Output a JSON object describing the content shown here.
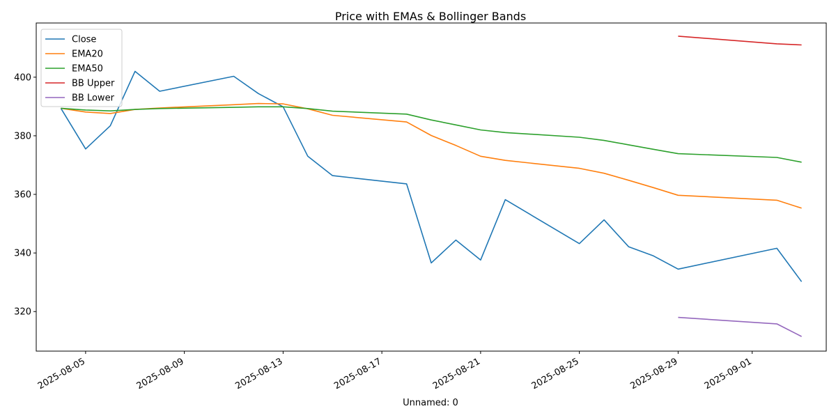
{
  "chart_data": {
    "type": "line",
    "title": "Price with EMAs & Bollinger Bands",
    "xlabel": "Unnamed: 0",
    "ylabel": "",
    "x_type": "date",
    "xlim": [
      "2025-08-03",
      "2025-09-04"
    ],
    "ylim": [
      306.5,
      418.5
    ],
    "x_ticks": [
      "2025-08-05",
      "2025-08-09",
      "2025-08-13",
      "2025-08-17",
      "2025-08-21",
      "2025-08-25",
      "2025-08-29",
      "2025-09-01"
    ],
    "y_ticks": [
      320,
      340,
      360,
      380,
      400
    ],
    "grid": false,
    "legend_position": "upper-left",
    "series": [
      {
        "name": "Close",
        "color": "#1f77b4",
        "points": [
          [
            "2025-08-04",
            389.4
          ],
          [
            "2025-08-05",
            375.5
          ],
          [
            "2025-08-06",
            383.4
          ],
          [
            "2025-08-07",
            402.0
          ],
          [
            "2025-08-08",
            395.2
          ],
          [
            "2025-08-11",
            400.3
          ],
          [
            "2025-08-12",
            394.4
          ],
          [
            "2025-08-13",
            389.9
          ],
          [
            "2025-08-14",
            373.0
          ],
          [
            "2025-08-15",
            366.4
          ],
          [
            "2025-08-18",
            363.6
          ],
          [
            "2025-08-19",
            336.6
          ],
          [
            "2025-08-20",
            344.4
          ],
          [
            "2025-08-21",
            337.6
          ],
          [
            "2025-08-22",
            358.2
          ],
          [
            "2025-08-25",
            343.2
          ],
          [
            "2025-08-26",
            351.3
          ],
          [
            "2025-08-27",
            342.1
          ],
          [
            "2025-08-28",
            339.0
          ],
          [
            "2025-08-29",
            334.5
          ],
          [
            "2025-09-02",
            341.6
          ],
          [
            "2025-09-03",
            330.2
          ]
        ]
      },
      {
        "name": "EMA20",
        "color": "#ff7f0e",
        "points": [
          [
            "2025-08-04",
            389.4
          ],
          [
            "2025-08-05",
            388.1
          ],
          [
            "2025-08-06",
            387.6
          ],
          [
            "2025-08-07",
            389.0
          ],
          [
            "2025-08-08",
            389.5
          ],
          [
            "2025-08-11",
            390.6
          ],
          [
            "2025-08-12",
            391.0
          ],
          [
            "2025-08-13",
            390.9
          ],
          [
            "2025-08-14",
            389.2
          ],
          [
            "2025-08-15",
            387.0
          ],
          [
            "2025-08-18",
            384.7
          ],
          [
            "2025-08-19",
            380.1
          ],
          [
            "2025-08-20",
            376.7
          ],
          [
            "2025-08-21",
            373.0
          ],
          [
            "2025-08-22",
            371.6
          ],
          [
            "2025-08-25",
            368.9
          ],
          [
            "2025-08-26",
            367.2
          ],
          [
            "2025-08-27",
            364.8
          ],
          [
            "2025-08-28",
            362.3
          ],
          [
            "2025-08-29",
            359.7
          ],
          [
            "2025-09-02",
            358.0
          ],
          [
            "2025-09-03",
            355.3
          ]
        ]
      },
      {
        "name": "EMA50",
        "color": "#2ca02c",
        "points": [
          [
            "2025-08-04",
            389.4
          ],
          [
            "2025-08-05",
            388.8
          ],
          [
            "2025-08-06",
            388.5
          ],
          [
            "2025-08-07",
            389.0
          ],
          [
            "2025-08-08",
            389.3
          ],
          [
            "2025-08-11",
            389.7
          ],
          [
            "2025-08-12",
            389.9
          ],
          [
            "2025-08-13",
            389.9
          ],
          [
            "2025-08-14",
            389.3
          ],
          [
            "2025-08-15",
            388.4
          ],
          [
            "2025-08-18",
            387.4
          ],
          [
            "2025-08-19",
            385.4
          ],
          [
            "2025-08-20",
            383.7
          ],
          [
            "2025-08-21",
            382.0
          ],
          [
            "2025-08-22",
            381.1
          ],
          [
            "2025-08-25",
            379.5
          ],
          [
            "2025-08-26",
            378.4
          ],
          [
            "2025-08-27",
            376.9
          ],
          [
            "2025-08-28",
            375.4
          ],
          [
            "2025-08-29",
            373.9
          ],
          [
            "2025-09-02",
            372.6
          ],
          [
            "2025-09-03",
            371.0
          ]
        ]
      },
      {
        "name": "BB Upper",
        "color": "#d62728",
        "points": [
          [
            "2025-08-29",
            414.0
          ],
          [
            "2025-09-02",
            411.4
          ],
          [
            "2025-09-03",
            411.0
          ]
        ]
      },
      {
        "name": "BB Lower",
        "color": "#9467bd",
        "points": [
          [
            "2025-08-29",
            318.0
          ],
          [
            "2025-09-02",
            315.8
          ],
          [
            "2025-09-03",
            311.5
          ]
        ]
      }
    ]
  }
}
